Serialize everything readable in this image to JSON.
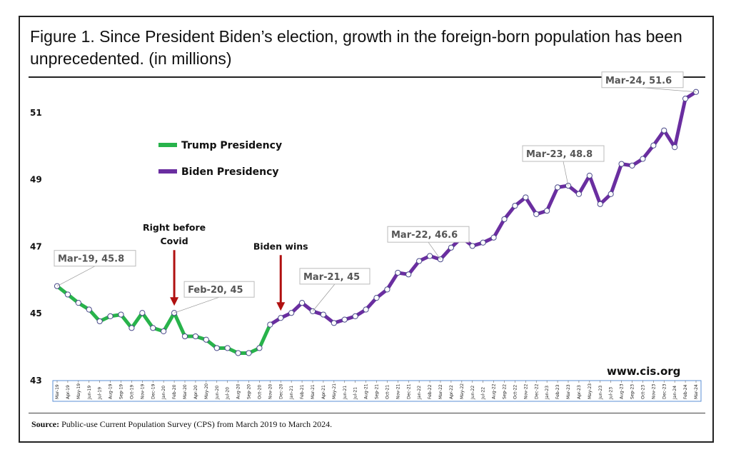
{
  "title": "Figure 1. Since President Biden’s election, growth in the foreign-born population has been unprecedented. (in millions)",
  "source_label": "Source:",
  "source_text": " Public-use Current Population Survey (CPS) from March 2019 to March 2024.",
  "watermark": "www.cis.org",
  "colors": {
    "trump": "#28b34b",
    "biden": "#6a2ea0",
    "arrow": "#b01010",
    "marker_stroke": "#4a4a8a"
  },
  "chart_data": {
    "type": "line",
    "ylim": [
      43,
      52
    ],
    "yticks": [
      43,
      45,
      47,
      49,
      51
    ],
    "categories": [
      "Mar-19",
      "Apr-19",
      "May-19",
      "Jun-19",
      "Jul-19",
      "Aug-19",
      "Sep-19",
      "Oct-19",
      "Nov-19",
      "Dec-19",
      "Jan-20",
      "Feb-20",
      "Mar-20",
      "Apr-20",
      "May-20",
      "Jun-20",
      "Jul-20",
      "Aug-20",
      "Sep-20",
      "Oct-20",
      "Nov-20",
      "Dec-20",
      "Jan-21",
      "Feb-21",
      "Mar-21",
      "Apr-21",
      "May-21",
      "Jun-21",
      "Jul-21",
      "Aug-21",
      "Sep-21",
      "Oct-21",
      "Nov-21",
      "Dec-21",
      "Jan-22",
      "Feb-22",
      "Mar-22",
      "Apr-22",
      "May-22",
      "Jun-22",
      "Jul-22",
      "Aug-22",
      "Sep-22",
      "Oct-22",
      "Nov-22",
      "Dec-22",
      "Jan-23",
      "Feb-23",
      "Mar-23",
      "Apr-23",
      "May-23",
      "Jun-23",
      "Jul-23",
      "Aug-23",
      "Sep-23",
      "Oct-23",
      "Nov-23",
      "Dec-23",
      "Jan-24",
      "Feb-24",
      "Mar-24"
    ],
    "values": [
      45.8,
      45.55,
      45.3,
      45.1,
      44.75,
      44.9,
      44.95,
      44.55,
      45.0,
      44.55,
      44.45,
      45.0,
      44.3,
      44.3,
      44.2,
      43.95,
      43.95,
      43.8,
      43.8,
      43.95,
      44.65,
      44.85,
      45.0,
      45.3,
      45.05,
      44.95,
      44.7,
      44.8,
      44.9,
      45.1,
      45.45,
      45.7,
      46.2,
      46.15,
      46.55,
      46.7,
      46.6,
      46.95,
      47.25,
      47.0,
      47.1,
      47.25,
      47.8,
      48.2,
      48.45,
      47.95,
      48.05,
      48.75,
      48.8,
      48.55,
      49.1,
      48.25,
      48.55,
      49.45,
      49.4,
      49.6,
      50.0,
      50.45,
      49.95,
      51.4,
      51.6
    ],
    "series": [
      {
        "name": "Trump Presidency",
        "start": 0,
        "end": 20
      },
      {
        "name": "Biden Presidency",
        "start": 20,
        "end": 60
      }
    ],
    "callouts": [
      {
        "index": 0,
        "text": "Mar-19,  45.8"
      },
      {
        "index": 11,
        "text": "Feb-20,  45"
      },
      {
        "index": 24,
        "text": "Mar-21,  45"
      },
      {
        "index": 36,
        "text": "Mar-22,  46.6"
      },
      {
        "index": 48,
        "text": "Mar-23,  48.8"
      },
      {
        "index": 60,
        "text": "Mar-24,  51.6"
      }
    ],
    "annotations": [
      {
        "index": 11,
        "lines": [
          "Right before",
          "Covid"
        ]
      },
      {
        "index": 21,
        "lines": [
          "Biden wins"
        ]
      }
    ]
  }
}
